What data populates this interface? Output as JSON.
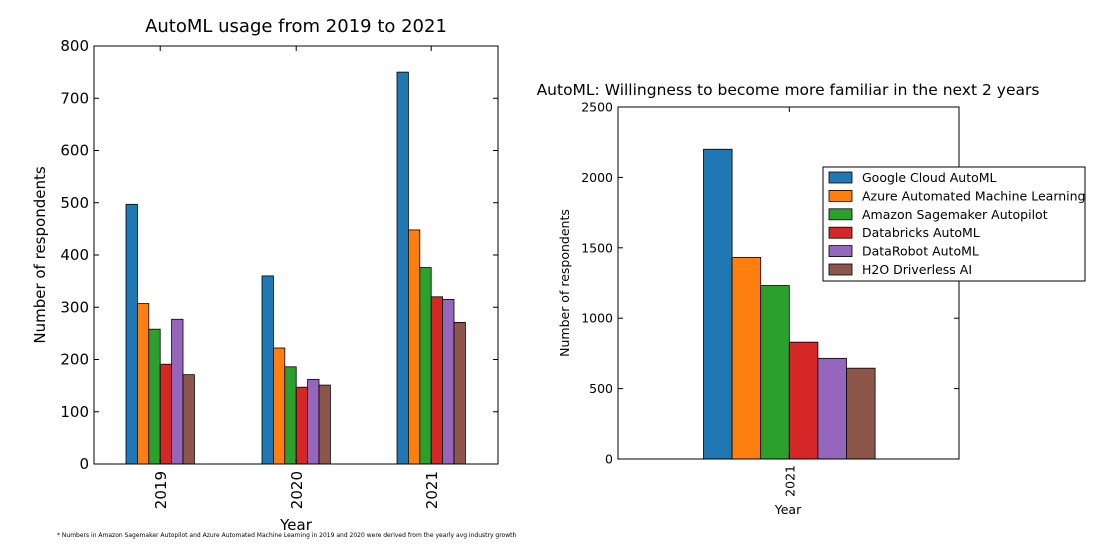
{
  "chart_data": [
    {
      "type": "bar",
      "title": "AutoML usage from 2019 to 2021",
      "xlabel": "Year",
      "ylabel": "Number of respondents",
      "ylim": [
        0,
        800
      ],
      "yticks": [
        "0",
        "100",
        "200",
        "300",
        "400",
        "500",
        "600",
        "700",
        "800"
      ],
      "categories": [
        "2019",
        "2020",
        "2021"
      ],
      "grid": false,
      "legend": "none",
      "footnote": "* Numbers in Amazon Sagemaker Autopilot and Azure Automated Machine Learning in 2019 and 2020 were derived from the yearly avg industry growth",
      "series": [
        {
          "name": "Google Cloud AutoML",
          "color": "#1f77b4",
          "values": [
            497,
            360,
            750
          ]
        },
        {
          "name": "Azure Automated Machine Learning",
          "color": "#ff7f0e",
          "values": [
            307,
            222,
            448
          ]
        },
        {
          "name": "Amazon Sagemaker Autopilot",
          "color": "#2ca02c",
          "values": [
            258,
            186,
            376
          ]
        },
        {
          "name": "Databricks AutoML",
          "color": "#d62728",
          "values": [
            191,
            147,
            320
          ]
        },
        {
          "name": "DataRobot AutoML",
          "color": "#9467bd",
          "values": [
            277,
            162,
            315
          ]
        },
        {
          "name": "H2O Driverless AI",
          "color": "#8c564b",
          "values": [
            171,
            151,
            271
          ]
        }
      ]
    },
    {
      "type": "bar",
      "title": "AutoML: Willingness to become more familiar in the next 2 years",
      "xlabel": "Year",
      "ylabel": "Number of respondents",
      "ylim": [
        0,
        2500
      ],
      "yticks": [
        "0",
        "500",
        "1000",
        "1500",
        "2000",
        "2500"
      ],
      "categories": [
        "2021"
      ],
      "grid": false,
      "legend": "top-right",
      "series": [
        {
          "name": "Google Cloud AutoML",
          "color": "#1f77b4",
          "values": [
            2200
          ]
        },
        {
          "name": "Azure Automated Machine Learning",
          "color": "#ff7f0e",
          "values": [
            1432
          ]
        },
        {
          "name": "Amazon Sagemaker Autopilot",
          "color": "#2ca02c",
          "values": [
            1232
          ]
        },
        {
          "name": "Databricks AutoML",
          "color": "#d62728",
          "values": [
            830
          ]
        },
        {
          "name": "DataRobot AutoML",
          "color": "#9467bd",
          "values": [
            715
          ]
        },
        {
          "name": "H2O Driverless AI",
          "color": "#8c564b",
          "values": [
            645
          ]
        }
      ]
    }
  ]
}
